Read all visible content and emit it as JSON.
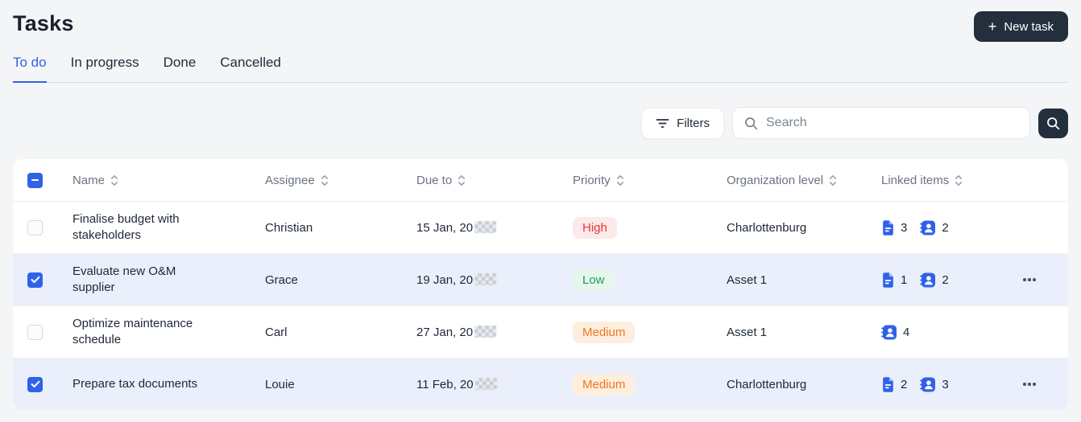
{
  "page": {
    "title": "Tasks"
  },
  "header": {
    "new_task_label": "New task",
    "plus_glyph": "+"
  },
  "tabs": [
    {
      "label": "To do",
      "active": true
    },
    {
      "label": "In progress",
      "active": false
    },
    {
      "label": "Done",
      "active": false
    },
    {
      "label": "Cancelled",
      "active": false
    }
  ],
  "toolbar": {
    "filters_label": "Filters",
    "search_placeholder": "Search",
    "icons": [
      "filter-lines-icon",
      "search-icon",
      "search-icon"
    ]
  },
  "table": {
    "columns": [
      "Name",
      "Assignee",
      "Due to",
      "Priority",
      "Organization level",
      "Linked items"
    ],
    "header_checkbox_state": "indeterminate",
    "rows": [
      {
        "name": "Finalise budget with stakeholders",
        "assignee": "Christian",
        "due_prefix": "15 Jan, 20",
        "due_redacted": true,
        "priority": "High",
        "org_level": "Charlottenburg",
        "linked_docs": 3,
        "linked_people": 2,
        "checked": false,
        "has_menu": false
      },
      {
        "name": "Evaluate new O&M supplier",
        "assignee": "Grace",
        "due_prefix": "19 Jan, 20",
        "due_redacted": true,
        "priority": "Low",
        "org_level": "Asset 1",
        "linked_docs": 1,
        "linked_people": 2,
        "checked": true,
        "has_menu": true
      },
      {
        "name": "Optimize maintenance schedule",
        "assignee": "Carl",
        "due_prefix": "27 Jan, 20",
        "due_redacted": true,
        "priority": "Medium",
        "org_level": "Asset 1",
        "linked_docs": null,
        "linked_people": 4,
        "checked": false,
        "has_menu": false
      },
      {
        "name": "Prepare tax documents",
        "assignee": "Louie",
        "due_prefix": "11 Feb, 20",
        "due_redacted": true,
        "priority": "Medium",
        "org_level": "Charlottenburg",
        "linked_docs": 2,
        "linked_people": 3,
        "checked": true,
        "has_menu": true
      }
    ]
  },
  "colors": {
    "accent_blue": "#2f62e9",
    "dark_button": "#232f3d",
    "selected_row_bg": "#eaeffb",
    "page_bg": "#f4f5f7",
    "priority_styles": {
      "High": {
        "bg": "#fce9e9",
        "fg": "#e5393f"
      },
      "Low": {
        "bg": "#e7f6ed",
        "fg": "#16a05d"
      },
      "Medium": {
        "bg": "#fdeedd",
        "fg": "#ef7624"
      }
    }
  }
}
